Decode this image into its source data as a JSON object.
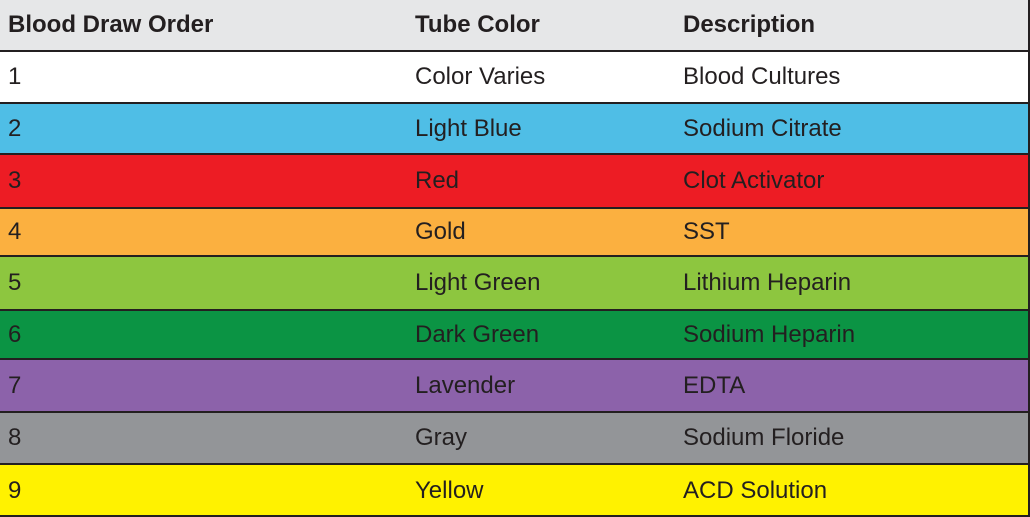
{
  "table": {
    "header": [
      "Blood Draw Order",
      "Tube Color",
      "Description"
    ],
    "header_color": "#e6e7e8",
    "rows": [
      [
        "1",
        "Color Varies",
        "Blood Cultures"
      ],
      [
        "2",
        "Light Blue",
        "Sodium Citrate"
      ],
      [
        "3",
        "Red",
        "Clot Activator"
      ],
      [
        "4",
        "Gold",
        "SST"
      ],
      [
        "5",
        "Light Green",
        "Lithium Heparin"
      ],
      [
        "6",
        "Dark Green",
        "Sodium Heparin"
      ],
      [
        "7",
        "Lavender",
        "EDTA"
      ],
      [
        "8",
        "Gray",
        "Sodium Floride"
      ],
      [
        "9",
        "Yellow",
        "ACD Solution"
      ]
    ],
    "row_colors": [
      "#ffffff",
      "#4fbee6",
      "#ed1c24",
      "#fbb040",
      "#8dc63f",
      "#0b9444",
      "#8c62aa",
      "#939598",
      "#fff200"
    ]
  }
}
